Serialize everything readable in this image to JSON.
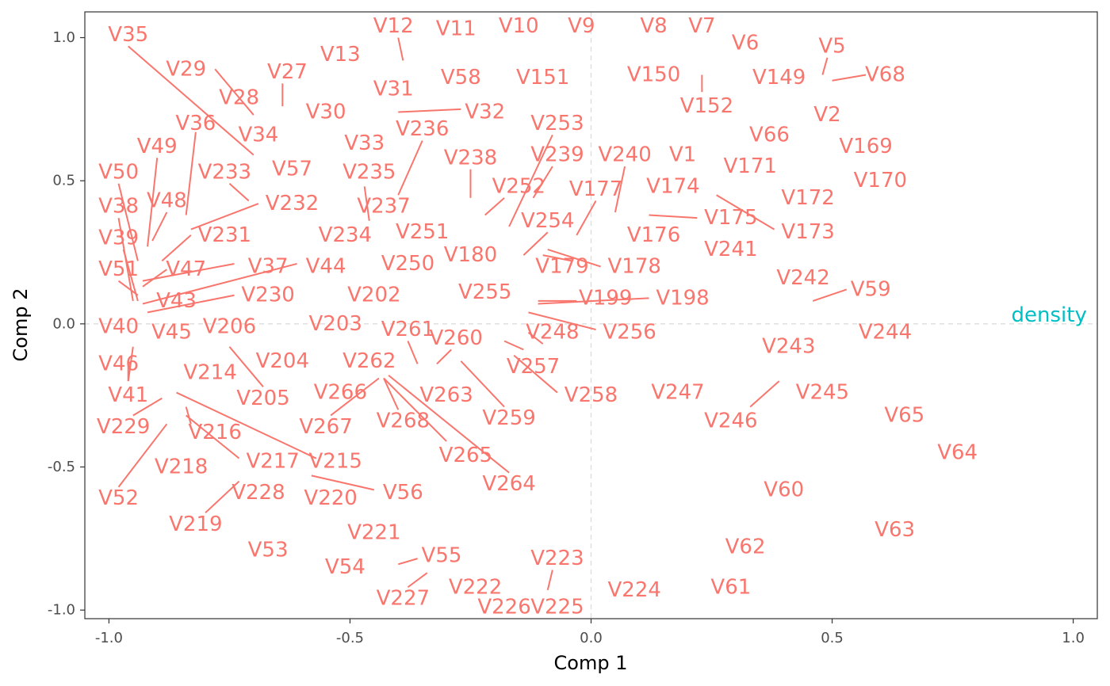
{
  "chart_data": {
    "type": "scatter",
    "xlabel": "Comp 1",
    "ylabel": "Comp 2",
    "xlim": [
      -1.05,
      1.05
    ],
    "ylim": [
      -1.03,
      1.09
    ],
    "xticks": [
      -1.0,
      -0.5,
      0.0,
      0.5,
      1.0
    ],
    "yticks": [
      -1.0,
      -0.5,
      0.0,
      0.5,
      1.0
    ],
    "xtick_labels": [
      "-1.0",
      "-0.5",
      "0.0",
      "0.5",
      "1.0"
    ],
    "ytick_labels": [
      "-1.0",
      "-0.5",
      "0.0",
      "0.5",
      "1.0"
    ],
    "zero_lines": true,
    "colors": {
      "variables": "#f8766d",
      "response": "#00bfc4"
    },
    "response": {
      "label": "density",
      "x": 0.95,
      "y": 0.03
    },
    "variables": [
      {
        "label": "V35",
        "x": -0.96,
        "y": 1.01,
        "lx": -0.96,
        "ly": 0.97,
        "tx": -0.7,
        "ty": 0.59
      },
      {
        "label": "V12",
        "x": -0.41,
        "y": 1.04,
        "lx": -0.4,
        "ly": 1.0,
        "tx": -0.39,
        "ty": 0.92
      },
      {
        "label": "V11",
        "x": -0.28,
        "y": 1.03
      },
      {
        "label": "V10",
        "x": -0.15,
        "y": 1.04
      },
      {
        "label": "V9",
        "x": -0.02,
        "y": 1.04
      },
      {
        "label": "V8",
        "x": 0.13,
        "y": 1.04
      },
      {
        "label": "V7",
        "x": 0.23,
        "y": 1.04
      },
      {
        "label": "V6",
        "x": 0.32,
        "y": 0.98
      },
      {
        "label": "V5",
        "x": 0.5,
        "y": 0.97,
        "lx": 0.49,
        "ly": 0.93,
        "tx": 0.48,
        "ty": 0.87
      },
      {
        "label": "V29",
        "x": -0.84,
        "y": 0.89,
        "lx": -0.78,
        "ly": 0.89,
        "tx": -0.7,
        "ty": 0.73
      },
      {
        "label": "V27",
        "x": -0.63,
        "y": 0.88,
        "lx": -0.64,
        "ly": 0.84,
        "tx": -0.64,
        "ty": 0.76
      },
      {
        "label": "V13",
        "x": -0.52,
        "y": 0.94
      },
      {
        "label": "V58",
        "x": -0.27,
        "y": 0.86
      },
      {
        "label": "V151",
        "x": -0.1,
        "y": 0.86
      },
      {
        "label": "V150",
        "x": 0.13,
        "y": 0.87
      },
      {
        "label": "V149",
        "x": 0.39,
        "y": 0.86
      },
      {
        "label": "V68",
        "x": 0.61,
        "y": 0.87,
        "lx": 0.57,
        "ly": 0.87,
        "tx": 0.5,
        "ty": 0.85
      },
      {
        "label": "V28",
        "x": -0.73,
        "y": 0.79
      },
      {
        "label": "V31",
        "x": -0.41,
        "y": 0.82
      },
      {
        "label": "V152",
        "x": 0.24,
        "y": 0.76,
        "lx": 0.23,
        "ly": 0.81,
        "tx": 0.23,
        "ty": 0.87
      },
      {
        "label": "V30",
        "x": -0.55,
        "y": 0.74
      },
      {
        "label": "V32",
        "x": -0.22,
        "y": 0.74,
        "lx": -0.27,
        "ly": 0.75,
        "tx": -0.4,
        "ty": 0.74
      },
      {
        "label": "V2",
        "x": 0.49,
        "y": 0.73
      },
      {
        "label": "V36",
        "x": -0.82,
        "y": 0.7,
        "lx": -0.82,
        "ly": 0.67,
        "tx": -0.84,
        "ty": 0.38
      },
      {
        "label": "V236",
        "x": -0.35,
        "y": 0.68,
        "lx": -0.35,
        "ly": 0.64,
        "tx": -0.4,
        "ty": 0.45
      },
      {
        "label": "V253",
        "x": -0.07,
        "y": 0.7,
        "lx": -0.08,
        "ly": 0.66,
        "tx": -0.17,
        "ty": 0.34
      },
      {
        "label": "V34",
        "x": -0.69,
        "y": 0.66
      },
      {
        "label": "V66",
        "x": 0.37,
        "y": 0.66
      },
      {
        "label": "V49",
        "x": -0.9,
        "y": 0.62,
        "lx": -0.9,
        "ly": 0.58,
        "tx": -0.92,
        "ty": 0.27
      },
      {
        "label": "V33",
        "x": -0.47,
        "y": 0.63
      },
      {
        "label": "V169",
        "x": 0.57,
        "y": 0.62
      },
      {
        "label": "V238",
        "x": -0.25,
        "y": 0.58,
        "lx": -0.25,
        "ly": 0.54,
        "tx": -0.25,
        "ty": 0.44
      },
      {
        "label": "V239",
        "x": -0.07,
        "y": 0.59,
        "lx": -0.08,
        "ly": 0.55,
        "tx": -0.12,
        "ty": 0.44
      },
      {
        "label": "V240",
        "x": 0.07,
        "y": 0.59,
        "lx": 0.07,
        "ly": 0.55,
        "tx": 0.05,
        "ty": 0.39
      },
      {
        "label": "V1",
        "x": 0.19,
        "y": 0.59
      },
      {
        "label": "V171",
        "x": 0.33,
        "y": 0.55
      },
      {
        "label": "V50",
        "x": -0.98,
        "y": 0.53,
        "lx": -0.98,
        "ly": 0.49,
        "tx": -0.94,
        "ty": 0.22
      },
      {
        "label": "V57",
        "x": -0.62,
        "y": 0.54
      },
      {
        "label": "V233",
        "x": -0.76,
        "y": 0.53,
        "lx": -0.75,
        "ly": 0.49,
        "tx": -0.71,
        "ty": 0.43
      },
      {
        "label": "V235",
        "x": -0.46,
        "y": 0.53,
        "lx": -0.47,
        "ly": 0.48,
        "tx": -0.46,
        "ty": 0.36
      },
      {
        "label": "V170",
        "x": 0.6,
        "y": 0.5
      },
      {
        "label": "V252",
        "x": -0.15,
        "y": 0.48,
        "lx": -0.18,
        "ly": 0.44,
        "tx": -0.22,
        "ty": 0.38
      },
      {
        "label": "V177",
        "x": 0.01,
        "y": 0.47,
        "lx": 0.01,
        "ly": 0.43,
        "tx": -0.03,
        "ty": 0.31
      },
      {
        "label": "V174",
        "x": 0.17,
        "y": 0.48
      },
      {
        "label": "V38",
        "x": -0.98,
        "y": 0.41,
        "lx": -0.98,
        "ly": 0.37,
        "tx": -0.95,
        "ty": 0.08
      },
      {
        "label": "V48",
        "x": -0.88,
        "y": 0.43,
        "lx": -0.88,
        "ly": 0.39,
        "tx": -0.91,
        "ty": 0.29
      },
      {
        "label": "V232",
        "x": -0.62,
        "y": 0.42,
        "lx": -0.69,
        "ly": 0.42,
        "tx": -0.83,
        "ty": 0.33
      },
      {
        "label": "V237",
        "x": -0.43,
        "y": 0.41
      },
      {
        "label": "V172",
        "x": 0.45,
        "y": 0.44
      },
      {
        "label": "V254",
        "x": -0.09,
        "y": 0.36,
        "lx": -0.09,
        "ly": 0.32,
        "tx": -0.14,
        "ty": 0.24
      },
      {
        "label": "V175",
        "x": 0.29,
        "y": 0.37,
        "lx": 0.22,
        "ly": 0.37,
        "tx": 0.12,
        "ty": 0.38
      },
      {
        "label": "V173",
        "x": 0.45,
        "y": 0.32,
        "lx": 0.38,
        "ly": 0.33,
        "tx": 0.26,
        "ty": 0.45
      },
      {
        "label": "V39",
        "x": -0.98,
        "y": 0.3,
        "lx": -0.97,
        "ly": 0.26,
        "tx": -0.94,
        "ty": 0.08
      },
      {
        "label": "V231",
        "x": -0.76,
        "y": 0.31,
        "lx": -0.83,
        "ly": 0.31,
        "tx": -0.89,
        "ty": 0.22
      },
      {
        "label": "V234",
        "x": -0.51,
        "y": 0.31
      },
      {
        "label": "V251",
        "x": -0.35,
        "y": 0.32
      },
      {
        "label": "V176",
        "x": 0.13,
        "y": 0.31
      },
      {
        "label": "V241",
        "x": 0.29,
        "y": 0.26
      },
      {
        "label": "V180",
        "x": -0.25,
        "y": 0.24
      },
      {
        "label": "V47",
        "x": -0.84,
        "y": 0.19,
        "lx": -0.88,
        "ly": 0.19,
        "tx": -0.93,
        "ty": 0.13
      },
      {
        "label": "V37",
        "x": -0.67,
        "y": 0.2,
        "lx": -0.74,
        "ly": 0.21,
        "tx": -0.93,
        "ty": 0.15
      },
      {
        "label": "V44",
        "x": -0.55,
        "y": 0.2,
        "lx": -0.61,
        "ly": 0.21,
        "tx": -0.93,
        "ty": 0.07
      },
      {
        "label": "V250",
        "x": -0.38,
        "y": 0.21
      },
      {
        "label": "V179",
        "x": -0.06,
        "y": 0.2,
        "lx": -0.04,
        "ly": 0.22,
        "tx": -0.1,
        "ty": 0.24
      },
      {
        "label": "V178",
        "x": 0.09,
        "y": 0.2,
        "lx": 0.02,
        "ly": 0.2,
        "tx": -0.09,
        "ty": 0.26
      },
      {
        "label": "V51",
        "x": -0.98,
        "y": 0.19,
        "lx": -0.98,
        "ly": 0.15,
        "tx": -0.94,
        "ty": 0.1
      },
      {
        "label": "V242",
        "x": 0.44,
        "y": 0.16
      },
      {
        "label": "V59",
        "x": 0.58,
        "y": 0.12,
        "lx": 0.53,
        "ly": 0.12,
        "tx": 0.46,
        "ty": 0.08
      },
      {
        "label": "V230",
        "x": -0.67,
        "y": 0.1,
        "lx": -0.74,
        "ly": 0.1,
        "tx": -0.92,
        "ty": 0.04
      },
      {
        "label": "V43",
        "x": -0.86,
        "y": 0.08
      },
      {
        "label": "V202",
        "x": -0.45,
        "y": 0.1
      },
      {
        "label": "V255",
        "x": -0.22,
        "y": 0.11
      },
      {
        "label": "V199",
        "x": 0.03,
        "y": 0.09,
        "lx": -0.03,
        "ly": 0.08,
        "tx": -0.11,
        "ty": 0.08
      },
      {
        "label": "V198",
        "x": 0.19,
        "y": 0.09,
        "lx": 0.12,
        "ly": 0.09,
        "tx": -0.11,
        "ty": 0.07
      },
      {
        "label": "V40",
        "x": -0.98,
        "y": -0.01
      },
      {
        "label": "V45",
        "x": -0.87,
        "y": -0.03
      },
      {
        "label": "V206",
        "x": -0.75,
        "y": -0.01,
        "lx": -0.75,
        "ly": -0.08,
        "tx": -0.68,
        "ty": -0.22
      },
      {
        "label": "V203",
        "x": -0.53,
        "y": 0.0
      },
      {
        "label": "V261",
        "x": -0.38,
        "y": -0.02,
        "lx": -0.38,
        "ly": -0.06,
        "tx": -0.36,
        "ty": -0.14
      },
      {
        "label": "V248",
        "x": -0.08,
        "y": -0.03,
        "lx": -0.1,
        "ly": -0.07,
        "tx": -0.13,
        "ty": -0.03
      },
      {
        "label": "V256",
        "x": 0.08,
        "y": -0.03,
        "lx": 0.01,
        "ly": -0.02,
        "tx": -0.13,
        "ty": 0.04
      },
      {
        "label": "V244",
        "x": 0.61,
        "y": -0.03
      },
      {
        "label": "V260",
        "x": -0.28,
        "y": -0.05,
        "lx": -0.29,
        "ly": -0.09,
        "tx": -0.32,
        "ty": -0.14
      },
      {
        "label": "V243",
        "x": 0.41,
        "y": -0.08
      },
      {
        "label": "V46",
        "x": -0.98,
        "y": -0.14,
        "lx": -0.95,
        "ly": -0.08,
        "tx": -0.96,
        "ty": -0.2
      },
      {
        "label": "V204",
        "x": -0.64,
        "y": -0.13
      },
      {
        "label": "V262",
        "x": -0.46,
        "y": -0.13
      },
      {
        "label": "V257",
        "x": -0.12,
        "y": -0.15,
        "lx": -0.14,
        "ly": -0.09,
        "tx": -0.18,
        "ty": -0.06
      },
      {
        "label": "V214",
        "x": -0.79,
        "y": -0.17
      },
      {
        "label": "V247",
        "x": 0.18,
        "y": -0.24
      },
      {
        "label": "V263",
        "x": -0.3,
        "y": -0.25
      },
      {
        "label": "V245",
        "x": 0.48,
        "y": -0.24,
        "lx": 0.39,
        "ly": -0.2,
        "tx": 0.33,
        "ty": -0.29
      },
      {
        "label": "V266",
        "x": -0.52,
        "y": -0.24
      },
      {
        "label": "V258",
        "x": 0.0,
        "y": -0.25,
        "lx": -0.07,
        "ly": -0.24,
        "tx": -0.16,
        "ty": -0.11
      },
      {
        "label": "V41",
        "x": -0.96,
        "y": -0.25,
        "lx": -0.96,
        "ly": -0.2,
        "tx": -0.96,
        "ty": -0.13
      },
      {
        "label": "V205",
        "x": -0.68,
        "y": -0.26
      },
      {
        "label": "V246",
        "x": 0.29,
        "y": -0.34
      },
      {
        "label": "V229",
        "x": -0.97,
        "y": -0.36,
        "lx": -0.95,
        "ly": -0.32,
        "tx": -0.89,
        "ty": -0.26
      },
      {
        "label": "V259",
        "x": -0.17,
        "y": -0.33,
        "lx": -0.18,
        "ly": -0.29,
        "tx": -0.27,
        "ty": -0.13
      },
      {
        "label": "V268",
        "x": -0.39,
        "y": -0.34,
        "lx": -0.4,
        "ly": -0.3,
        "tx": -0.43,
        "ty": -0.19
      },
      {
        "label": "V267",
        "x": -0.55,
        "y": -0.36,
        "lx": -0.54,
        "ly": -0.32,
        "tx": -0.44,
        "ty": -0.19
      },
      {
        "label": "V65",
        "x": 0.65,
        "y": -0.32
      },
      {
        "label": "V216",
        "x": -0.78,
        "y": -0.38,
        "lx": -0.83,
        "ly": -0.35,
        "tx": -0.84,
        "ty": -0.29
      },
      {
        "label": "V265",
        "x": -0.26,
        "y": -0.46,
        "lx": -0.3,
        "ly": -0.41,
        "tx": -0.43,
        "ty": -0.19
      },
      {
        "label": "V217",
        "x": -0.66,
        "y": -0.48,
        "lx": -0.73,
        "ly": -0.47,
        "tx": -0.84,
        "ty": -0.32
      },
      {
        "label": "V215",
        "x": -0.53,
        "y": -0.48,
        "lx": -0.57,
        "ly": -0.47,
        "tx": -0.86,
        "ty": -0.24
      },
      {
        "label": "V64",
        "x": 0.76,
        "y": -0.45
      },
      {
        "label": "V218",
        "x": -0.85,
        "y": -0.5
      },
      {
        "label": "V264",
        "x": -0.17,
        "y": -0.56,
        "lx": -0.17,
        "ly": -0.52,
        "tx": -0.42,
        "ty": -0.18
      },
      {
        "label": "V52",
        "x": -0.98,
        "y": -0.61,
        "lx": -0.98,
        "ly": -0.57,
        "tx": -0.88,
        "ty": -0.35
      },
      {
        "label": "V56",
        "x": -0.39,
        "y": -0.59,
        "lx": -0.45,
        "ly": -0.58,
        "tx": -0.58,
        "ty": -0.53
      },
      {
        "label": "V228",
        "x": -0.69,
        "y": -0.59
      },
      {
        "label": "V220",
        "x": -0.54,
        "y": -0.61
      },
      {
        "label": "V60",
        "x": 0.4,
        "y": -0.58
      },
      {
        "label": "V219",
        "x": -0.82,
        "y": -0.7,
        "lx": -0.8,
        "ly": -0.66,
        "tx": -0.73,
        "ty": -0.55
      },
      {
        "label": "V63",
        "x": 0.63,
        "y": -0.72
      },
      {
        "label": "V221",
        "x": -0.45,
        "y": -0.73
      },
      {
        "label": "V62",
        "x": 0.32,
        "y": -0.78
      },
      {
        "label": "V53",
        "x": -0.67,
        "y": -0.79
      },
      {
        "label": "V55",
        "x": -0.31,
        "y": -0.81,
        "lx": -0.36,
        "ly": -0.82,
        "tx": -0.4,
        "ty": -0.84
      },
      {
        "label": "V54",
        "x": -0.51,
        "y": -0.85
      },
      {
        "label": "V223",
        "x": -0.07,
        "y": -0.82,
        "lx": -0.08,
        "ly": -0.86,
        "tx": -0.09,
        "ty": -0.93
      },
      {
        "label": "V61",
        "x": 0.29,
        "y": -0.92
      },
      {
        "label": "V224",
        "x": 0.09,
        "y": -0.93
      },
      {
        "label": "V222",
        "x": -0.24,
        "y": -0.92
      },
      {
        "label": "V227",
        "x": -0.39,
        "y": -0.96,
        "lx": -0.38,
        "ly": -0.92,
        "tx": -0.34,
        "ty": -0.87
      },
      {
        "label": "V226",
        "x": -0.18,
        "y": -0.99
      },
      {
        "label": "V225",
        "x": -0.07,
        "y": -0.99
      }
    ]
  }
}
